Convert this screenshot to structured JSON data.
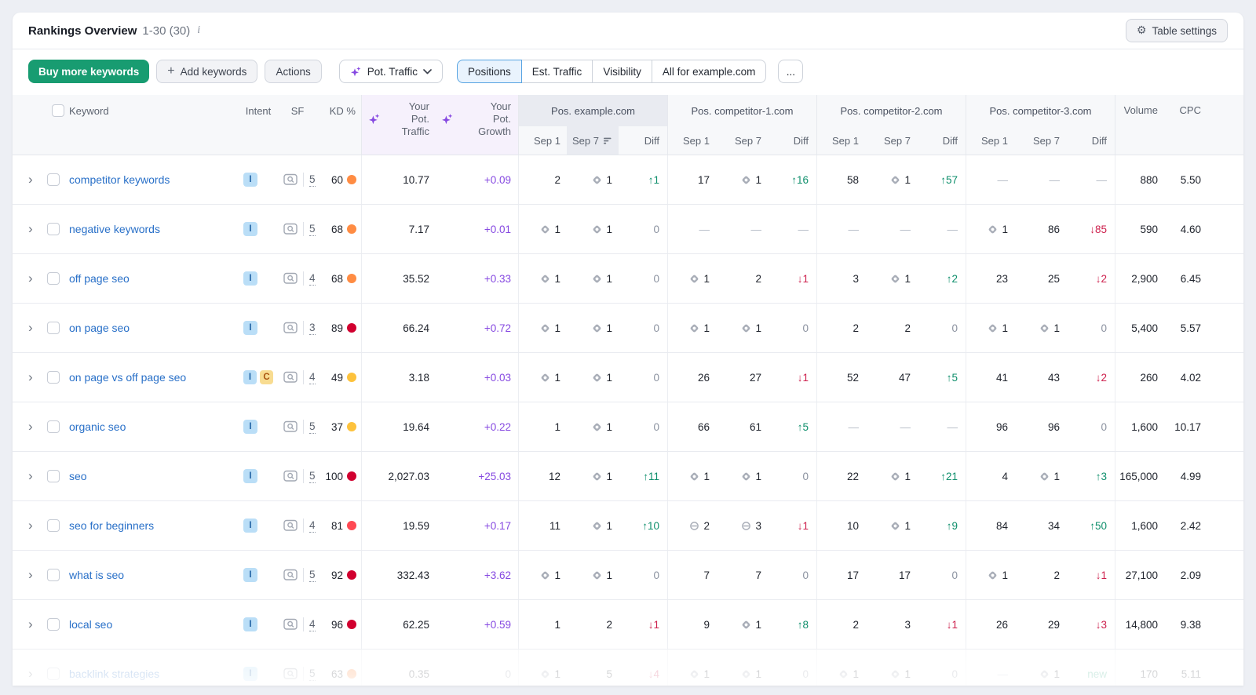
{
  "header": {
    "title": "Rankings Overview",
    "range": "1-30 (30)",
    "settings_label": "Table settings"
  },
  "toolbar": {
    "buy_label": "Buy more keywords",
    "add_label": "Add keywords",
    "actions_label": "Actions",
    "metric_label": "Pot. Traffic",
    "tabs": [
      {
        "label": "Positions",
        "active": true
      },
      {
        "label": "Est. Traffic",
        "active": false
      },
      {
        "label": "Visibility",
        "active": false
      },
      {
        "label": "All for example.com",
        "active": false
      }
    ],
    "more_label": "..."
  },
  "table": {
    "columns": {
      "keyword": "Keyword",
      "intent": "Intent",
      "sf": "SF",
      "kd": "KD %",
      "volume": "Volume",
      "cpc": "CPC"
    },
    "ai_traffic": [
      "Your",
      "Pot. Traffic"
    ],
    "ai_growth": [
      "Your",
      "Pot. Growth"
    ],
    "groups": [
      {
        "name": "Pos. example.com",
        "highlight": true,
        "sorted": true
      },
      {
        "name": "Pos. competitor-1.com",
        "highlight": false,
        "sorted": false
      },
      {
        "name": "Pos. competitor-2.com",
        "highlight": false,
        "sorted": false
      },
      {
        "name": "Pos. competitor-3.com",
        "highlight": false,
        "sorted": false
      }
    ],
    "dates": {
      "from": "Sep 1",
      "to": "Sep 7",
      "diff": "Diff"
    },
    "rows": [
      {
        "keyword": "competitor keywords",
        "intents": [
          "I"
        ],
        "sf": "5",
        "kd": "60",
        "kd_color": "#ff8c43",
        "pot_traffic": "10.77",
        "pot_growth": "+0.09",
        "growth_muted": false,
        "faded": false,
        "g": [
          [
            {
              "n": "2"
            },
            {
              "n": "1",
              "ic": "d"
            },
            {
              "d": "up",
              "n": "1"
            }
          ],
          [
            {
              "n": "17"
            },
            {
              "n": "1",
              "ic": "d"
            },
            {
              "d": "up",
              "n": "16"
            }
          ],
          [
            {
              "n": "58"
            },
            {
              "n": "1",
              "ic": "d"
            },
            {
              "d": "up",
              "n": "57"
            }
          ],
          [
            "-",
            "-",
            "-"
          ]
        ],
        "volume": "880",
        "cpc": "5.50"
      },
      {
        "keyword": "negative keywords",
        "intents": [
          "I"
        ],
        "sf": "5",
        "kd": "68",
        "kd_color": "#ff8c43",
        "pot_traffic": "7.17",
        "pot_growth": "+0.01",
        "growth_muted": false,
        "faded": false,
        "g": [
          [
            {
              "n": "1",
              "ic": "d"
            },
            {
              "n": "1",
              "ic": "d"
            },
            "0"
          ],
          [
            "-",
            "-",
            "-"
          ],
          [
            "-",
            "-",
            "-"
          ],
          [
            {
              "n": "1",
              "ic": "d"
            },
            {
              "n": "86"
            },
            {
              "d": "down",
              "n": "85"
            }
          ]
        ],
        "volume": "590",
        "cpc": "4.60"
      },
      {
        "keyword": "off page seo",
        "intents": [
          "I"
        ],
        "sf": "4",
        "kd": "68",
        "kd_color": "#ff8c43",
        "pot_traffic": "35.52",
        "pot_growth": "+0.33",
        "growth_muted": false,
        "faded": false,
        "g": [
          [
            {
              "n": "1",
              "ic": "d"
            },
            {
              "n": "1",
              "ic": "d"
            },
            "0"
          ],
          [
            {
              "n": "1",
              "ic": "d"
            },
            {
              "n": "2"
            },
            {
              "d": "down",
              "n": "1"
            }
          ],
          [
            {
              "n": "3"
            },
            {
              "n": "1",
              "ic": "d"
            },
            {
              "d": "up",
              "n": "2"
            }
          ],
          [
            {
              "n": "23"
            },
            {
              "n": "25"
            },
            {
              "d": "down",
              "n": "2"
            }
          ]
        ],
        "volume": "2,900",
        "cpc": "6.45"
      },
      {
        "keyword": "on page seo",
        "intents": [
          "I"
        ],
        "sf": "3",
        "kd": "89",
        "kd_color": "#d1002f",
        "pot_traffic": "66.24",
        "pot_growth": "+0.72",
        "growth_muted": false,
        "faded": false,
        "g": [
          [
            {
              "n": "1",
              "ic": "d"
            },
            {
              "n": "1",
              "ic": "d"
            },
            "0"
          ],
          [
            {
              "n": "1",
              "ic": "d"
            },
            {
              "n": "1",
              "ic": "d"
            },
            "0"
          ],
          [
            {
              "n": "2"
            },
            {
              "n": "2"
            },
            "0"
          ],
          [
            {
              "n": "1",
              "ic": "d"
            },
            {
              "n": "1",
              "ic": "d"
            },
            "0"
          ]
        ],
        "volume": "5,400",
        "cpc": "5.57"
      },
      {
        "keyword": "on page vs off page seo",
        "intents": [
          "I",
          "C"
        ],
        "sf": "4",
        "kd": "49",
        "kd_color": "#fdc23c",
        "pot_traffic": "3.18",
        "pot_growth": "+0.03",
        "growth_muted": false,
        "faded": false,
        "g": [
          [
            {
              "n": "1",
              "ic": "d"
            },
            {
              "n": "1",
              "ic": "d"
            },
            "0"
          ],
          [
            {
              "n": "26"
            },
            {
              "n": "27"
            },
            {
              "d": "down",
              "n": "1"
            }
          ],
          [
            {
              "n": "52"
            },
            {
              "n": "47"
            },
            {
              "d": "up",
              "n": "5"
            }
          ],
          [
            {
              "n": "41"
            },
            {
              "n": "43"
            },
            {
              "d": "down",
              "n": "2"
            }
          ]
        ],
        "volume": "260",
        "cpc": "4.02"
      },
      {
        "keyword": "organic seo",
        "intents": [
          "I"
        ],
        "sf": "5",
        "kd": "37",
        "kd_color": "#fdc23c",
        "pot_traffic": "19.64",
        "pot_growth": "+0.22",
        "growth_muted": false,
        "faded": false,
        "g": [
          [
            {
              "n": "1"
            },
            {
              "n": "1",
              "ic": "d"
            },
            "0"
          ],
          [
            {
              "n": "66"
            },
            {
              "n": "61"
            },
            {
              "d": "up",
              "n": "5"
            }
          ],
          [
            "-",
            "-",
            "-"
          ],
          [
            {
              "n": "96"
            },
            {
              "n": "96"
            },
            "0"
          ]
        ],
        "volume": "1,600",
        "cpc": "10.17"
      },
      {
        "keyword": "seo",
        "intents": [
          "I"
        ],
        "sf": "5",
        "kd": "100",
        "kd_color": "#d1002f",
        "pot_traffic": "2,027.03",
        "pot_growth": "+25.03",
        "growth_muted": false,
        "faded": false,
        "g": [
          [
            {
              "n": "12"
            },
            {
              "n": "1",
              "ic": "d"
            },
            {
              "d": "up",
              "n": "11"
            }
          ],
          [
            {
              "n": "1",
              "ic": "d"
            },
            {
              "n": "1",
              "ic": "d"
            },
            "0"
          ],
          [
            {
              "n": "22"
            },
            {
              "n": "1",
              "ic": "d"
            },
            {
              "d": "up",
              "n": "21"
            }
          ],
          [
            {
              "n": "4"
            },
            {
              "n": "1",
              "ic": "d"
            },
            {
              "d": "up",
              "n": "3"
            }
          ]
        ],
        "volume": "165,000",
        "cpc": "4.99"
      },
      {
        "keyword": "seo for beginners",
        "intents": [
          "I"
        ],
        "sf": "4",
        "kd": "81",
        "kd_color": "#ff4953",
        "pot_traffic": "19.59",
        "pot_growth": "+0.17",
        "growth_muted": false,
        "faded": false,
        "g": [
          [
            {
              "n": "11"
            },
            {
              "n": "1",
              "ic": "d"
            },
            {
              "d": "up",
              "n": "10"
            }
          ],
          [
            {
              "n": "2",
              "ic": "l"
            },
            {
              "n": "3",
              "ic": "l"
            },
            {
              "d": "down",
              "n": "1"
            }
          ],
          [
            {
              "n": "10"
            },
            {
              "n": "1",
              "ic": "d"
            },
            {
              "d": "up",
              "n": "9"
            }
          ],
          [
            {
              "n": "84"
            },
            {
              "n": "34"
            },
            {
              "d": "up",
              "n": "50"
            }
          ]
        ],
        "volume": "1,600",
        "cpc": "2.42"
      },
      {
        "keyword": "what is seo",
        "intents": [
          "I"
        ],
        "sf": "5",
        "kd": "92",
        "kd_color": "#d1002f",
        "pot_traffic": "332.43",
        "pot_growth": "+3.62",
        "growth_muted": false,
        "faded": false,
        "g": [
          [
            {
              "n": "1",
              "ic": "d"
            },
            {
              "n": "1",
              "ic": "d"
            },
            "0"
          ],
          [
            {
              "n": "7"
            },
            {
              "n": "7"
            },
            "0"
          ],
          [
            {
              "n": "17"
            },
            {
              "n": "17"
            },
            "0"
          ],
          [
            {
              "n": "1",
              "ic": "d"
            },
            {
              "n": "2"
            },
            {
              "d": "down",
              "n": "1"
            }
          ]
        ],
        "volume": "27,100",
        "cpc": "2.09"
      },
      {
        "keyword": "local seo",
        "intents": [
          "I"
        ],
        "sf": "4",
        "kd": "96",
        "kd_color": "#d1002f",
        "pot_traffic": "62.25",
        "pot_growth": "+0.59",
        "growth_muted": false,
        "faded": false,
        "g": [
          [
            {
              "n": "1"
            },
            {
              "n": "2"
            },
            {
              "d": "down",
              "n": "1"
            }
          ],
          [
            {
              "n": "9"
            },
            {
              "n": "1",
              "ic": "d"
            },
            {
              "d": "up",
              "n": "8"
            }
          ],
          [
            {
              "n": "2"
            },
            {
              "n": "3"
            },
            {
              "d": "down",
              "n": "1"
            }
          ],
          [
            {
              "n": "26"
            },
            {
              "n": "29"
            },
            {
              "d": "down",
              "n": "3"
            }
          ]
        ],
        "volume": "14,800",
        "cpc": "9.38"
      },
      {
        "keyword": "backlink strategies",
        "intents": [
          "I"
        ],
        "sf": "5",
        "kd": "63",
        "kd_color": "#ff8c43",
        "pot_traffic": "0.35",
        "pot_growth": "0",
        "growth_muted": true,
        "faded": true,
        "g": [
          [
            {
              "n": "1",
              "ic": "d"
            },
            {
              "n": "5"
            },
            {
              "d": "down",
              "n": "4"
            }
          ],
          [
            {
              "n": "1",
              "ic": "d"
            },
            {
              "n": "1",
              "ic": "d"
            },
            "0"
          ],
          [
            {
              "n": "1",
              "ic": "d"
            },
            {
              "n": "1",
              "ic": "d"
            },
            "0"
          ],
          [
            "-",
            {
              "n": "1",
              "ic": "d"
            },
            "new"
          ]
        ],
        "volume": "170",
        "cpc": "5.11"
      }
    ]
  },
  "colors": {
    "accent_green": "#189c71",
    "link_blue": "#2970c8",
    "ai_purple": "#8649e1",
    "diff_up": "#0f8f6c",
    "diff_down": "#cd1f4c",
    "kd_yellow": "#fdc23c",
    "kd_orange": "#ff8c43",
    "kd_red_light": "#ff4953",
    "kd_red": "#d1002f",
    "tab_active_border": "#57a4e2",
    "tab_active_bg": "#e9f3fd"
  },
  "icons": {
    "info": "info-icon",
    "gear": "gear-icon",
    "plus": "plus-icon",
    "sparkles": "ai-sparkles-icon",
    "chevron_down": "chevron-down-icon",
    "diamond": "serp-feature-diamond-icon",
    "link": "link-icon",
    "serp": "serp-features-icon",
    "sort": "sort-desc-icon",
    "row_chevron": "expand-chevron-icon"
  }
}
